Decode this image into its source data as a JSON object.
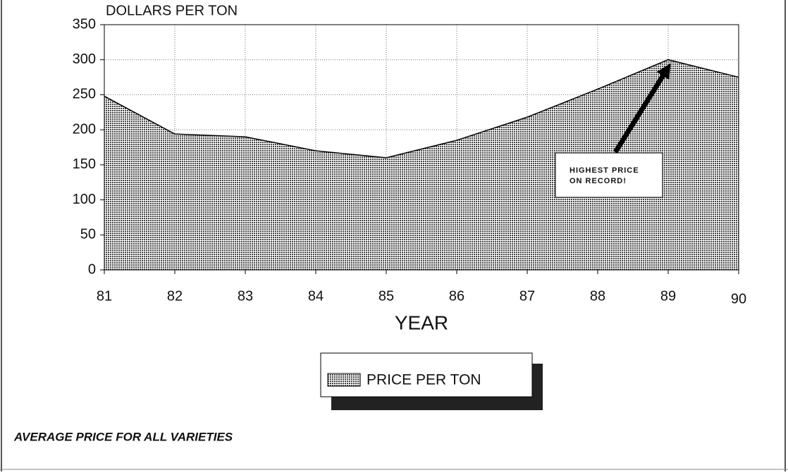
{
  "chart_data": {
    "type": "area",
    "title": "DOLLARS PER TON",
    "x_label": "YEAR",
    "categories": [
      "81",
      "82",
      "83",
      "84",
      "85",
      "86",
      "87",
      "88",
      "89",
      "90"
    ],
    "series": [
      {
        "name": "PRICE PER TON",
        "color": "#444444",
        "values": [
          248,
          194,
          190,
          170,
          160,
          185,
          218,
          258,
          300,
          275
        ]
      }
    ],
    "ylim": [
      0,
      350
    ],
    "yticks": [
      0,
      50,
      100,
      150,
      200,
      250,
      300,
      350
    ],
    "grid": true,
    "legend": "bottom",
    "annotation": {
      "lines": [
        "HIGHEST PRICE",
        "ON RECORD!"
      ],
      "category": 8
    },
    "caption": "AVERAGE PRICE FOR ALL VARIETIES"
  }
}
